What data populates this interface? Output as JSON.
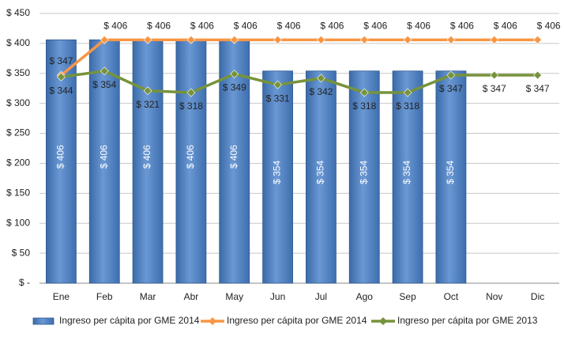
{
  "chart_data": {
    "type": "combo",
    "categories": [
      "Ene",
      "Feb",
      "Mar",
      "Abr",
      "May",
      "Jun",
      "Jul",
      "Ago",
      "Sep",
      "Oct",
      "Nov",
      "Dic"
    ],
    "series": [
      {
        "name": "Ingreso per cápita por GME 2014",
        "type": "bar",
        "color": "#4f81bd",
        "values": [
          406,
          406,
          406,
          406,
          406,
          354,
          354,
          354,
          354,
          354,
          null,
          null
        ],
        "value_labels": [
          "$ 406",
          "$ 406",
          "$ 406",
          "$ 406",
          "$ 406",
          "$ 354",
          "$ 354",
          "$ 354",
          "$ 354",
          "$ 354",
          null,
          null
        ]
      },
      {
        "name": "Ingreso per cápita por GME 2014",
        "type": "line",
        "color": "#f79646",
        "label_position": "above",
        "values": [
          347,
          406,
          406,
          406,
          406,
          406,
          406,
          406,
          406,
          406,
          406,
          406
        ],
        "value_labels": [
          "$ 347",
          "$ 406",
          "$ 406",
          "$ 406",
          "$ 406",
          "$ 406",
          "$ 406",
          "$ 406",
          "$ 406",
          "$ 406",
          "$ 406",
          "$ 406"
        ]
      },
      {
        "name": "Ingreso per cápita por GME 2013",
        "type": "line",
        "color": "#77933c",
        "label_position": "below",
        "values": [
          344,
          354,
          321,
          318,
          349,
          331,
          342,
          318,
          318,
          347,
          347,
          347
        ],
        "value_labels": [
          "$ 344",
          "$ 354",
          "$ 321",
          "$ 318",
          "$ 349",
          "$ 331",
          "$ 342",
          "$ 318",
          "$ 318",
          "$ 347",
          "$ 347",
          "$ 347"
        ]
      }
    ],
    "ylim": [
      0,
      450
    ],
    "yticks": [
      {
        "value": 0,
        "label": "$ -"
      },
      {
        "value": 50,
        "label": "$ 50"
      },
      {
        "value": 100,
        "label": "$ 100"
      },
      {
        "value": 150,
        "label": "$ 150"
      },
      {
        "value": 200,
        "label": "$ 200"
      },
      {
        "value": 250,
        "label": "$ 250"
      },
      {
        "value": 300,
        "label": "$ 300"
      },
      {
        "value": 350,
        "label": "$ 350"
      },
      {
        "value": 400,
        "label": "$ 400"
      },
      {
        "value": 450,
        "label": "$ 450"
      }
    ],
    "grid": true,
    "legend": "bottom"
  }
}
